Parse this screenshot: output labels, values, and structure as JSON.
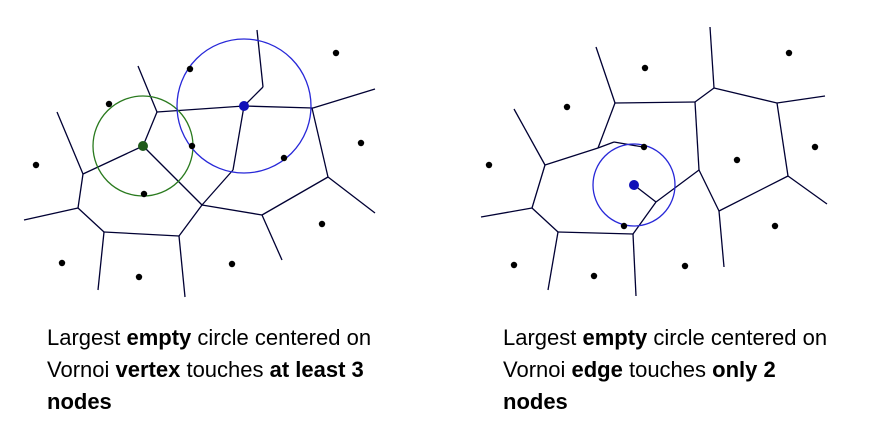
{
  "colors": {
    "edge": "#000033",
    "site": "#000000",
    "vertex_circle": "#2a7a1e",
    "vertex_center": "#1f5a1a",
    "edge_circle": "#2828d8",
    "edge_center": "#1010b8"
  },
  "left_panel": {
    "description": "Voronoi diagram with empty circle centered on a Voronoi vertex",
    "caption": {
      "part1": "Largest ",
      "bold1": "empty",
      "part2": " circle centered on Vornoi ",
      "bold2": "vertex",
      "part3": " touches ",
      "bold3": "at least 3 nodes"
    }
  },
  "right_panel": {
    "description": "Voronoi diagram with empty circle centered on a Voronoi edge",
    "caption": {
      "part1": "Largest ",
      "bold1": "empty",
      "part2": " circle centered on Vornoi ",
      "bold2": "edge",
      "part3": " touches ",
      "bold3": "only 2 nodes"
    }
  }
}
